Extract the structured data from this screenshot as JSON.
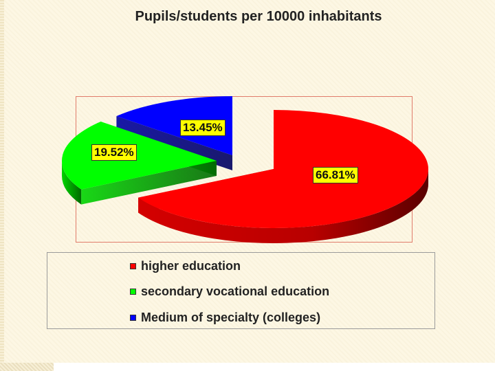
{
  "chart_data": {
    "type": "pie",
    "title": "Pupils/students per 10000 inhabitants",
    "categories": [
      "higher education",
      "secondary vocational education",
      "Medium of specialty (colleges)"
    ],
    "values": [
      66.81,
      19.52,
      13.45
    ],
    "data_labels": [
      "66.81%",
      "19.52%",
      "13.45%"
    ],
    "colors": [
      "#ff0000",
      "#00ff00",
      "#0000ff"
    ],
    "legend_position": "bottom",
    "style": "3d-exploded"
  }
}
